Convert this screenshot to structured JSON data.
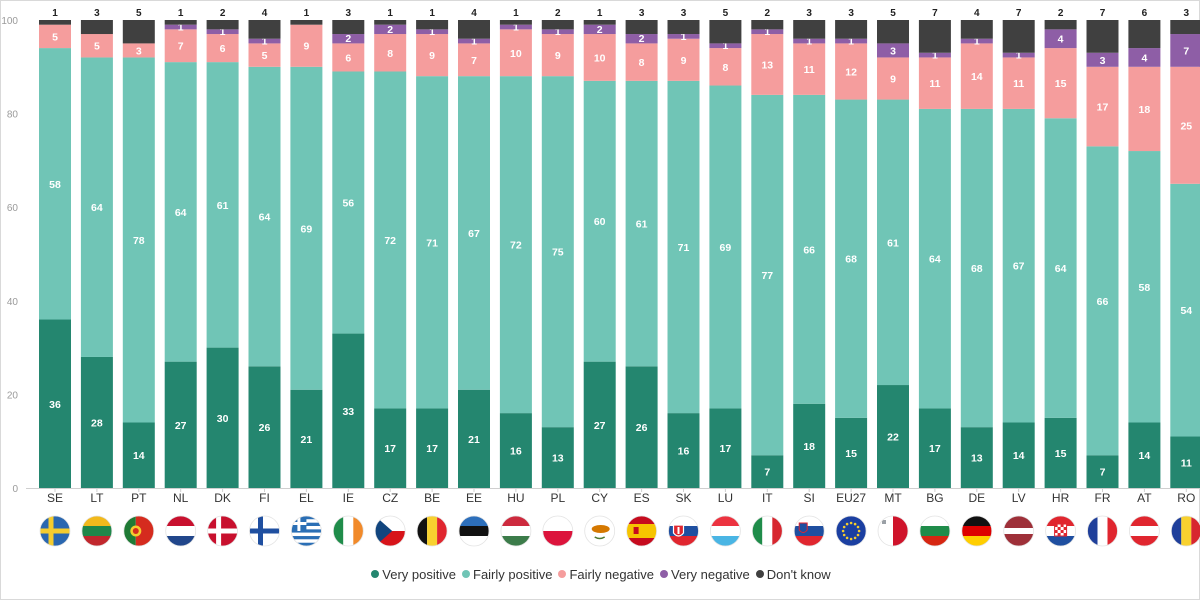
{
  "chart_data": {
    "type": "bar",
    "stacked": true,
    "title": "",
    "xlabel": "",
    "ylabel": "",
    "ylim": [
      0,
      100
    ],
    "yticks": [
      0,
      20,
      40,
      60,
      80,
      100
    ],
    "grid": false,
    "legend_position": "bottom",
    "categories": [
      "SE",
      "LT",
      "PT",
      "NL",
      "DK",
      "FI",
      "EL",
      "IE",
      "CZ",
      "BE",
      "EE",
      "HU",
      "PL",
      "CY",
      "ES",
      "SK",
      "LU",
      "IT",
      "SI",
      "EU27",
      "MT",
      "BG",
      "DE",
      "LV",
      "HR",
      "FR",
      "AT",
      "RO"
    ],
    "series": [
      {
        "name": "Very positive",
        "color": "#24866f",
        "values": [
          36,
          28,
          14,
          27,
          30,
          26,
          21,
          33,
          17,
          17,
          21,
          16,
          13,
          27,
          26,
          16,
          17,
          7,
          18,
          15,
          22,
          17,
          13,
          14,
          15,
          7,
          14,
          11
        ]
      },
      {
        "name": "Fairly positive",
        "color": "#70c5b6",
        "values": [
          58,
          64,
          78,
          64,
          61,
          64,
          69,
          56,
          72,
          71,
          67,
          72,
          75,
          60,
          61,
          71,
          69,
          77,
          66,
          68,
          61,
          64,
          68,
          67,
          64,
          66,
          58,
          54
        ]
      },
      {
        "name": "Fairly negative",
        "color": "#f59d9d",
        "values": [
          5,
          5,
          3,
          7,
          6,
          5,
          9,
          6,
          8,
          9,
          7,
          10,
          9,
          10,
          8,
          9,
          8,
          13,
          11,
          12,
          9,
          11,
          14,
          11,
          15,
          17,
          18,
          25
        ]
      },
      {
        "name": "Very negative",
        "color": "#8e5ea6",
        "values": [
          0,
          0,
          0,
          1,
          1,
          1,
          0,
          2,
          2,
          1,
          1,
          1,
          1,
          2,
          2,
          1,
          1,
          1,
          1,
          1,
          3,
          1,
          1,
          1,
          4,
          3,
          4,
          7
        ]
      },
      {
        "name": "Don't know",
        "color": "#404040",
        "values": [
          1,
          3,
          5,
          1,
          2,
          4,
          1,
          3,
          1,
          1,
          4,
          1,
          2,
          1,
          3,
          3,
          5,
          2,
          3,
          3,
          5,
          7,
          4,
          7,
          2,
          7,
          6,
          3
        ]
      }
    ],
    "flags": [
      "flag-se-icon",
      "flag-lt-icon",
      "flag-pt-icon",
      "flag-nl-icon",
      "flag-dk-icon",
      "flag-fi-icon",
      "flag-el-icon",
      "flag-ie-icon",
      "flag-cz-icon",
      "flag-be-icon",
      "flag-ee-icon",
      "flag-hu-icon",
      "flag-pl-icon",
      "flag-cy-icon",
      "flag-es-icon",
      "flag-sk-icon",
      "flag-lu-icon",
      "flag-it-icon",
      "flag-si-icon",
      "flag-eu27-icon",
      "flag-mt-icon",
      "flag-bg-icon",
      "flag-de-icon",
      "flag-lv-icon",
      "flag-hr-icon",
      "flag-fr-icon",
      "flag-at-icon",
      "flag-ro-icon"
    ]
  }
}
